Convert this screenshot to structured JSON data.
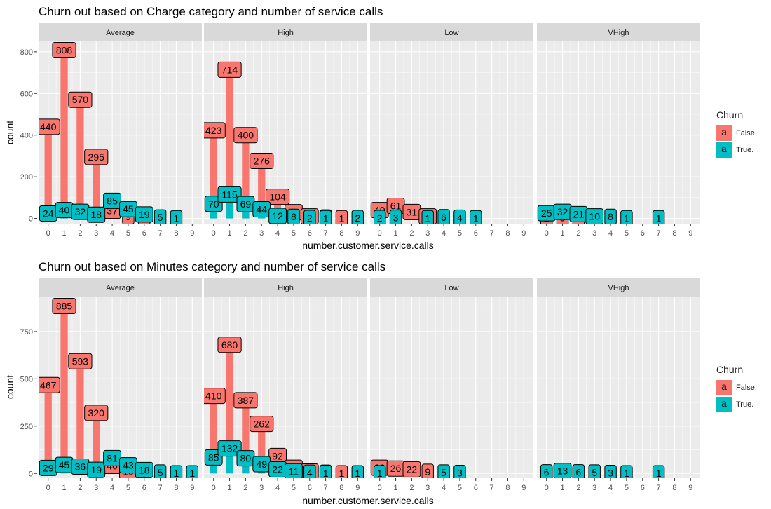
{
  "colors": {
    "false": "#F8766D",
    "true": "#00BFC4",
    "panel_bg": "#EBEBEB",
    "strip_bg": "#D9D9D9",
    "grid": "#FFFFFF"
  },
  "legend": {
    "title": "Churn",
    "key_glyph": "a",
    "items": [
      {
        "label": "False.",
        "color": "#F8766D"
      },
      {
        "label": "True.",
        "color": "#00BFC4"
      }
    ]
  },
  "chart_data": [
    {
      "type": "bar",
      "title": "Churn out based on Charge category and number of service calls",
      "xlabel": "number.customer.service.calls",
      "ylabel": "count",
      "facets": [
        "Average",
        "High",
        "Low",
        "VHigh"
      ],
      "x": [
        0,
        1,
        2,
        3,
        4,
        5,
        6,
        7,
        8,
        9
      ],
      "yticks": [
        0,
        200,
        400,
        600,
        800
      ],
      "ylim": [
        -25,
        850
      ],
      "grid": true,
      "legend_position": "right",
      "series": [
        {
          "name": "False.",
          "panels": {
            "Average": {
              "x": [
                0,
                1,
                2,
                3,
                4,
                5,
                6
              ],
              "y": [
                440,
                808,
                570,
                295,
                37,
                9,
                3
              ]
            },
            "High": {
              "x": [
                0,
                1,
                2,
                3,
                4,
                5,
                6,
                7,
                8
              ],
              "y": [
                423,
                714,
                400,
                276,
                104,
                30,
                10,
                5,
                1
              ]
            },
            "Low": {
              "x": [
                0,
                1,
                2,
                3
              ],
              "y": [
                40,
                61,
                31,
                10
              ]
            },
            "VHigh": {
              "x": [
                0,
                1,
                2,
                3
              ],
              "y": [
                2,
                3,
                2,
                1
              ]
            }
          }
        },
        {
          "name": "True.",
          "panels": {
            "Average": {
              "x": [
                0,
                1,
                2,
                3,
                4,
                5,
                6,
                7,
                8
              ],
              "y": [
                24,
                40,
                32,
                18,
                85,
                45,
                19,
                5,
                1
              ]
            },
            "High": {
              "x": [
                0,
                1,
                2,
                3,
                4,
                5,
                6,
                7,
                9
              ],
              "y": [
                70,
                115,
                69,
                44,
                12,
                8,
                2,
                1,
                2
              ]
            },
            "Low": {
              "x": [
                0,
                1,
                3,
                4,
                5,
                6
              ],
              "y": [
                2,
                3,
                1,
                6,
                4,
                1
              ]
            },
            "VHigh": {
              "x": [
                0,
                1,
                2,
                3,
                4,
                5,
                7
              ],
              "y": [
                25,
                32,
                21,
                10,
                8,
                1,
                1
              ]
            }
          }
        }
      ]
    },
    {
      "type": "bar",
      "title": "Churn out based on Minutes category and number of service calls",
      "xlabel": "number.customer.service.calls",
      "ylabel": "count",
      "facets": [
        "Average",
        "High",
        "Low",
        "VHigh"
      ],
      "x": [
        0,
        1,
        2,
        3,
        4,
        5,
        6,
        7,
        8,
        9
      ],
      "yticks": [
        0,
        250,
        500,
        750
      ],
      "ylim": [
        -25,
        935
      ],
      "grid": true,
      "legend_position": "right",
      "series": [
        {
          "name": "False.",
          "panels": {
            "Average": {
              "x": [
                0,
                1,
                2,
                3,
                4,
                5,
                6
              ],
              "y": [
                467,
                885,
                593,
                320,
                40,
                10,
                3
              ]
            },
            "High": {
              "x": [
                0,
                1,
                2,
                3,
                4,
                5,
                6,
                7,
                8
              ],
              "y": [
                410,
                680,
                387,
                262,
                92,
                30,
                10,
                4,
                1
              ]
            },
            "Low": {
              "x": [
                0,
                1,
                2,
                3
              ],
              "y": [
                30,
                26,
                22,
                9
              ]
            },
            "VHigh": {
              "x": [
                0,
                1,
                2
              ],
              "y": [
                1,
                1,
                1
              ]
            }
          }
        },
        {
          "name": "True.",
          "panels": {
            "Average": {
              "x": [
                0,
                1,
                2,
                3,
                4,
                5,
                6,
                7,
                8,
                9
              ],
              "y": [
                29,
                45,
                36,
                19,
                81,
                43,
                18,
                5,
                1,
                1
              ]
            },
            "High": {
              "x": [
                0,
                1,
                2,
                3,
                4,
                5,
                6,
                7,
                9
              ],
              "y": [
                85,
                132,
                80,
                49,
                22,
                11,
                4,
                1,
                1
              ]
            },
            "Low": {
              "x": [
                0,
                4,
                5
              ],
              "y": [
                1,
                5,
                3
              ]
            },
            "VHigh": {
              "x": [
                0,
                1,
                2,
                3,
                4,
                5,
                7
              ],
              "y": [
                6,
                13,
                6,
                5,
                3,
                1,
                1
              ]
            }
          }
        }
      ]
    }
  ]
}
